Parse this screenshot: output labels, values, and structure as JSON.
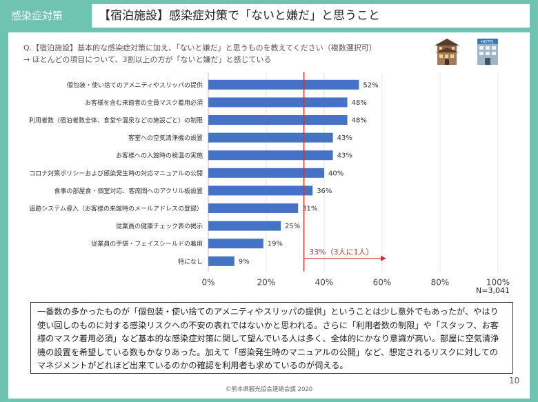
{
  "header": {
    "category": "感染症対策",
    "title": "【宿泊施設】感染症対策で「ないと嫌だ」と思うこと"
  },
  "question": "Q.【宿泊施設】基本的な感染症対策に加え、「ないと嫌だ」と思うものを教えてください（複数選択可）",
  "finding": "→ ほとんどの項目について、3割以上の方が「ないと嫌だ」と感じている",
  "icons": {
    "ryokan": "ryokan-building-icon",
    "hotel": "hotel-building-icon",
    "hotel_sign": "HOTEL"
  },
  "chart_data": {
    "type": "bar",
    "orientation": "horizontal",
    "categories": [
      "個包装・使い捨てのアメニティやスリッパの提供",
      "お客様を含む来館者の全員マスク着用必須",
      "利用者数（宿泊者数全体、食堂や温泉などの施設ごと）の制限",
      "客室への空気清浄機の設置",
      "お客様への入館時の検温の実施",
      "コロナ対策ポリシーおよび感染発生時の対応マニュアルの公開",
      "食事の部屋食・個室対応、客席間へのアクリル板設置",
      "追跡システム導入（お客様の来館時のメールアドレスの登録）",
      "従業員の健康チェック表の掲示",
      "従業員の手袋・フェイスシールドの着用",
      "特になし"
    ],
    "values": [
      52,
      48,
      48,
      43,
      43,
      40,
      36,
      31,
      25,
      19,
      9
    ],
    "value_labels": [
      "52%",
      "48%",
      "48%",
      "43%",
      "43%",
      "40%",
      "36%",
      "31%",
      "25%",
      "19%",
      "9%"
    ],
    "xlim": [
      0,
      100
    ],
    "xticks": [
      0,
      20,
      40,
      60,
      80,
      100
    ],
    "xtick_labels": [
      "0%",
      "20%",
      "40%",
      "60%",
      "80%",
      "100%"
    ],
    "bar_color": "#4472c4",
    "grid": true,
    "reference_line": {
      "value": 33,
      "label": "33%（3人に1人）",
      "color": "#c0392b"
    },
    "n_label": "N=3,041"
  },
  "comment": "一番数の多かったものが「個包装・使い捨てのアメニティやスリッパの提供」ということは少し意外でもあったが、やはり使い回しのものに対する感染リスクへの不安の表れではないかと思われる。さらに「利用者数の制限」や「スタッフ、お客様のマスク着用必須」など基本的な感染症対策に関して望んでいる人は多く、全体的にかなり意識が高い。部屋に空気清浄機の設置を希望している数もかなりあった。加えて「感染発生時のマニュアルの公開」など、想定されるリスクに対してのマネジメントがどれほど出来ているのかの確認を利用者も求めているのが伺える。",
  "footer": "©熊本県観光協会連絡会議 2020",
  "page_number": "10",
  "colors": {
    "background": "#6ec3b1",
    "bar": "#4472c4",
    "reference": "#c0392b"
  }
}
